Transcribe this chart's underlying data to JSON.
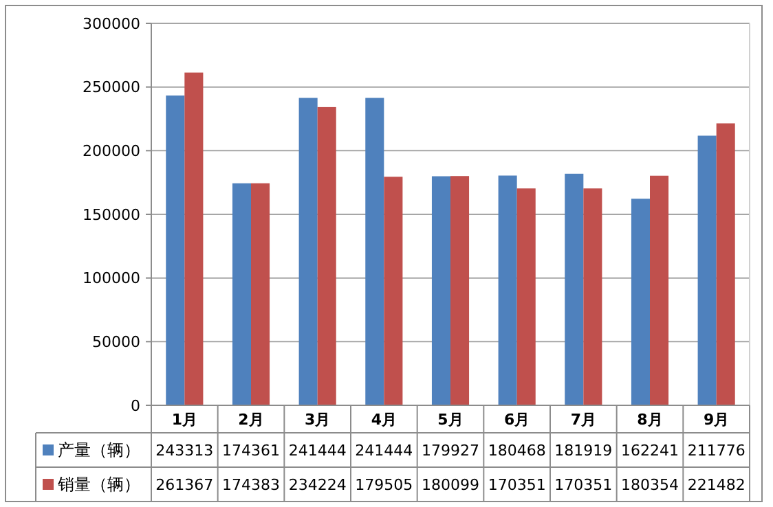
{
  "chart_data": {
    "type": "bar",
    "categories": [
      "1月",
      "2月",
      "3月",
      "4月",
      "5月",
      "6月",
      "7月",
      "8月",
      "9月"
    ],
    "series": [
      {
        "name": "产量（辆）",
        "color": "#4f81bd",
        "values": [
          243313,
          174361,
          241444,
          241444,
          179927,
          180468,
          181919,
          162241,
          211776
        ]
      },
      {
        "name": "销量（辆）",
        "color": "#c0504d",
        "values": [
          261367,
          174383,
          234224,
          179505,
          180099,
          170351,
          170351,
          180354,
          221482
        ]
      }
    ],
    "ylim": [
      0,
      300000
    ],
    "yticks": [
      0,
      50000,
      100000,
      150000,
      200000,
      250000,
      300000
    ],
    "grid": "y",
    "legend": "bottom",
    "data_labels": true
  }
}
